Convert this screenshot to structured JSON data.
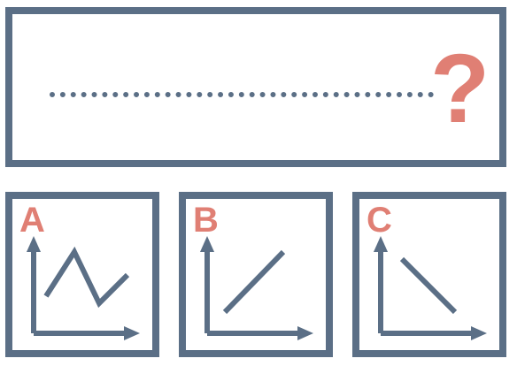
{
  "prompt": {
    "question_mark": "?"
  },
  "options": [
    {
      "letter": "A",
      "graph_icon": "zigzag-line-chart-icon"
    },
    {
      "letter": "B",
      "graph_icon": "upward-line-chart-icon"
    },
    {
      "letter": "C",
      "graph_icon": "downward-line-chart-icon"
    }
  ],
  "colors": {
    "frame": "#5b6f86",
    "accent": "#e07f74",
    "background": "#ffffff"
  }
}
